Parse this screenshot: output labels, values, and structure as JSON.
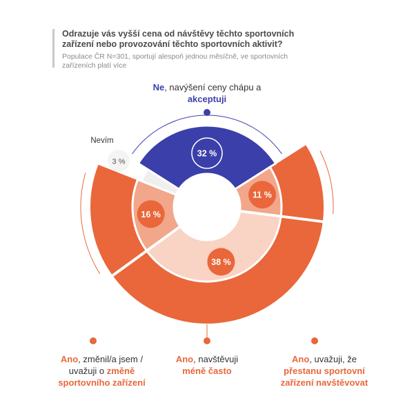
{
  "header": {
    "title": "Odrazuje vás vyšší cena od návštěvy těchto sportovních zařízení nebo provozování těchto sportovních aktivit?",
    "subtitle": "Populace ČR N=301, sportují alespoň jednou měsíčně, ve sportovních zařízeních platí více"
  },
  "captions": {
    "no": {
      "part1": "Ne",
      "part2": ", navýšení ceny chápu a ",
      "part3": "akceptuji"
    },
    "dont_know": "Nevím",
    "change": {
      "part1": "Ano",
      "part2": ", změnil/a jsem / uvažuji o ",
      "part3": "změně sportovního zařízení"
    },
    "less": {
      "part1": "Ano",
      "part2": ", navštěvuji ",
      "part3": "méně často"
    },
    "stop": {
      "part1": "Ano",
      "part2": ", uvažuji, že ",
      "part3": "přestanu sportovní zařízení navštěvovat"
    }
  },
  "colors": {
    "blue": "#3b3faa",
    "orange": "#e9673a",
    "orange_mid": "#f2a68a",
    "orange_light": "#f9d3c4",
    "gray": "#efefef"
  },
  "chart_data": {
    "type": "pie",
    "title": "Odrazuje vás vyšší cena od návštěvy těchto sportovních zařízení nebo provozování těchto sportovních aktivit?",
    "slices": [
      {
        "label": "Ne, navýšení ceny chápu a akceptuji",
        "value": 32,
        "display": "32 %"
      },
      {
        "label": "Ano, uvažuji, že přestanu sportovní zařízení navštěvovat",
        "value": 11,
        "display": "11 %"
      },
      {
        "label": "Ano, navštěvuji méně často",
        "value": 38,
        "display": "38 %"
      },
      {
        "label": "Ano, změnil/a jsem / uvažuji o změně sportovního zařízení",
        "value": 16,
        "display": "16 %"
      },
      {
        "label": "Nevím",
        "value": 3,
        "display": "3 %"
      }
    ],
    "outer_group": {
      "label": "Ano",
      "value": 65
    }
  }
}
